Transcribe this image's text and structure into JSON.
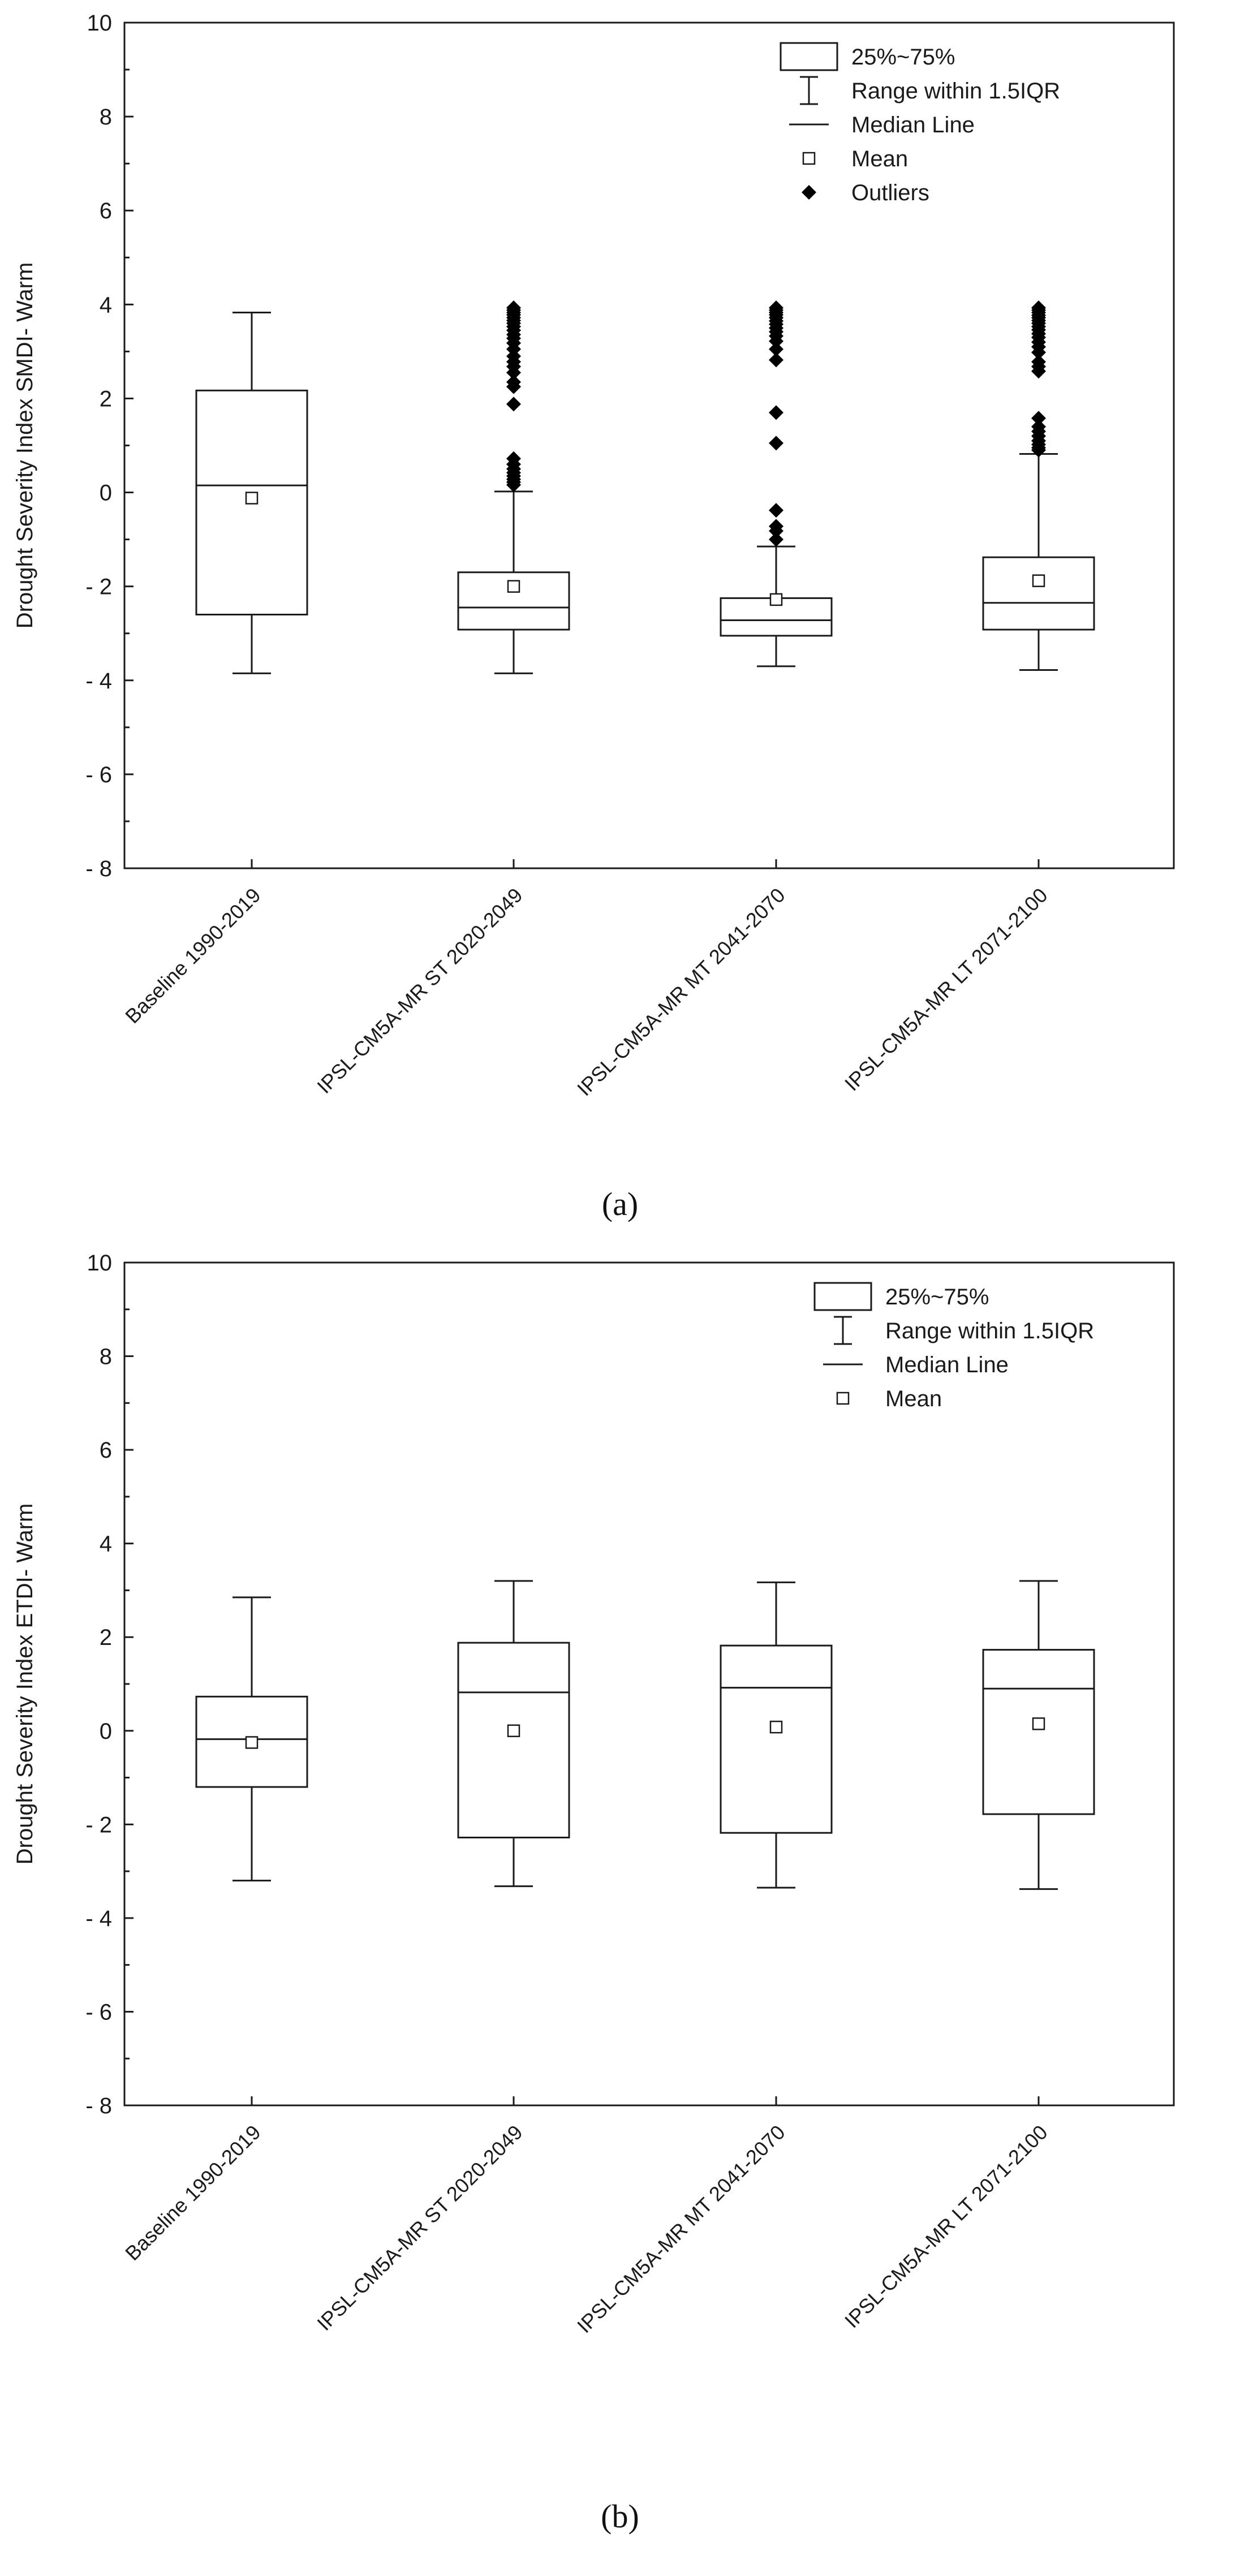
{
  "colors": {
    "ink": "#1a1a1a",
    "box_fill": "#ffffff",
    "outlier": "#000000"
  },
  "legend_symbols": {
    "box": "rectangle-swatch",
    "range": "whisker-icon",
    "median": "horizontal-line",
    "mean": "hollow-square-icon",
    "outliers": "filled-diamond-icon"
  },
  "chart_data": [
    {
      "type": "box",
      "panel_label": "(a)",
      "ylabel": "Drought Severity Index SMDI- Warm",
      "xlabel": "",
      "ylim": [
        -8,
        10
      ],
      "yticks": [
        10,
        8,
        6,
        4,
        2,
        0,
        -2,
        -4,
        -6,
        -8
      ],
      "ytick_labels": [
        "10",
        "8",
        "6",
        "4",
        "2",
        "0",
        "- 2",
        "- 4",
        "- 6",
        "- 8"
      ],
      "categories": [
        "Baseline 1990-2019",
        "IPSL-CM5A-MR ST 2020-2049",
        "IPSL-CM5A-MR MT 2041-2070",
        "IPSL-CM5A-MR LT 2071-2100"
      ],
      "legend": {
        "box": "25%~75%",
        "range": "Range within 1.5IQR",
        "median": "Median Line",
        "mean": "Mean",
        "outliers": "Outliers"
      },
      "boxes": [
        {
          "whisker_low": -3.85,
          "q1": -2.6,
          "median": 0.15,
          "q3": 2.17,
          "whisker_high": 3.83,
          "mean": -0.12,
          "outliers": []
        },
        {
          "whisker_low": -3.85,
          "q1": -2.92,
          "median": -2.45,
          "q3": -1.7,
          "whisker_high": 0.02,
          "mean": -2.0,
          "outliers": [
            3.93,
            3.88,
            3.83,
            3.78,
            3.72,
            3.66,
            3.6,
            3.53,
            3.45,
            3.36,
            3.28,
            3.18,
            3.05,
            2.9,
            2.78,
            2.68,
            2.55,
            2.35,
            2.25,
            1.88,
            0.72,
            0.6,
            0.5,
            0.42,
            0.35,
            0.28,
            0.22,
            0.16
          ]
        },
        {
          "whisker_low": -3.7,
          "q1": -3.05,
          "median": -2.72,
          "q3": -2.25,
          "whisker_high": -1.15,
          "mean": -2.28,
          "outliers": [
            3.93,
            3.88,
            3.83,
            3.78,
            3.72,
            3.65,
            3.58,
            3.5,
            3.42,
            3.33,
            3.22,
            3.05,
            2.82,
            1.7,
            1.05,
            -0.38,
            -0.72,
            -0.82,
            -1.0
          ]
        },
        {
          "whisker_low": -3.78,
          "q1": -2.92,
          "median": -2.35,
          "q3": -1.38,
          "whisker_high": 0.82,
          "mean": -1.88,
          "outliers": [
            3.93,
            3.88,
            3.83,
            3.77,
            3.72,
            3.66,
            3.6,
            3.53,
            3.46,
            3.38,
            3.3,
            3.2,
            3.1,
            2.98,
            2.78,
            2.68,
            2.58,
            1.58,
            1.4,
            1.3,
            1.2,
            1.1,
            1.02,
            0.95,
            0.9
          ]
        }
      ]
    },
    {
      "type": "box",
      "panel_label": "(b)",
      "ylabel": "Drought Severity Index ETDI- Warm",
      "xlabel": "",
      "ylim": [
        -8,
        10
      ],
      "yticks": [
        10,
        8,
        6,
        4,
        2,
        0,
        -2,
        -4,
        -6,
        -8
      ],
      "ytick_labels": [
        "10",
        "8",
        "6",
        "4",
        "2",
        "0",
        "- 2",
        "- 4",
        "- 6",
        "- 8"
      ],
      "categories": [
        "Baseline 1990-2019",
        "IPSL-CM5A-MR ST 2020-2049",
        "IPSL-CM5A-MR MT 2041-2070",
        "IPSL-CM5A-MR LT 2071-2100"
      ],
      "legend": {
        "box": "25%~75%",
        "range": "Range within 1.5IQR",
        "median": "Median Line",
        "mean": "Mean"
      },
      "boxes": [
        {
          "whisker_low": -3.2,
          "q1": -1.2,
          "median": -0.18,
          "q3": 0.73,
          "whisker_high": 2.85,
          "mean": -0.25,
          "outliers": []
        },
        {
          "whisker_low": -3.32,
          "q1": -2.28,
          "median": 0.82,
          "q3": 1.88,
          "whisker_high": 3.2,
          "mean": 0.0,
          "outliers": []
        },
        {
          "whisker_low": -3.35,
          "q1": -2.18,
          "median": 0.92,
          "q3": 1.82,
          "whisker_high": 3.17,
          "mean": 0.08,
          "outliers": []
        },
        {
          "whisker_low": -3.38,
          "q1": -1.78,
          "median": 0.9,
          "q3": 1.73,
          "whisker_high": 3.2,
          "mean": 0.15,
          "outliers": []
        }
      ]
    }
  ]
}
